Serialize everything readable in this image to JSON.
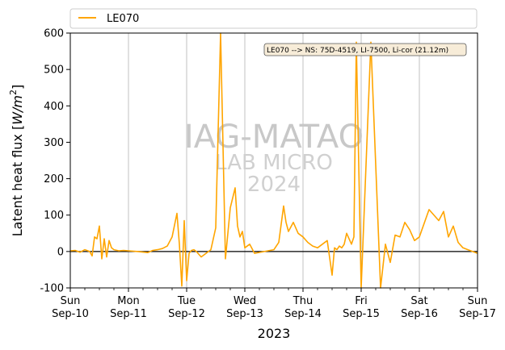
{
  "chart_data": {
    "type": "line",
    "year_label": "2023",
    "ylabel_prefix": "Latent heat flux [",
    "ylabel_unit": "W/m",
    "ylabel_suffix": "]",
    "ylim": [
      -100,
      600
    ],
    "yticks": [
      -100,
      0,
      100,
      200,
      300,
      400,
      500,
      600
    ],
    "xlim": [
      "2023-09-10",
      "2023-09-17"
    ],
    "xticks": [
      {
        "day": "Sun",
        "date": "Sep-10"
      },
      {
        "day": "Mon",
        "date": "Sep-11"
      },
      {
        "day": "Tue",
        "date": "Sep-12"
      },
      {
        "day": "Wed",
        "date": "Sep-13"
      },
      {
        "day": "Thu",
        "date": "Sep-14"
      },
      {
        "day": "Fri",
        "date": "Sep-15"
      },
      {
        "day": "Sat",
        "date": "Sep-16"
      },
      {
        "day": "Sun",
        "date": "Sep-17"
      }
    ],
    "grid": "vertical",
    "zero_line": true,
    "legend_position": "top",
    "annotation": "LE070 --> NS: 75D-4519, LI-7500, Li-cor (21.12m)",
    "watermark": [
      "IAG-MATAO",
      "LAB MICRO",
      "2024"
    ],
    "series": [
      {
        "name": "LE070",
        "color": "#FFA500",
        "x": [
          "2023-09-10 00:00",
          "2023-09-10 02:00",
          "2023-09-10 04:00",
          "2023-09-10 06:00",
          "2023-09-10 08:00",
          "2023-09-10 09:00",
          "2023-09-10 10:00",
          "2023-09-10 11:00",
          "2023-09-10 12:00",
          "2023-09-10 13:00",
          "2023-09-10 14:00",
          "2023-09-10 15:00",
          "2023-09-10 16:00",
          "2023-09-10 17:00",
          "2023-09-10 18:00",
          "2023-09-10 20:00",
          "2023-09-10 22:00",
          "2023-09-11 00:00",
          "2023-09-11 04:00",
          "2023-09-11 08:00",
          "2023-09-11 10:00",
          "2023-09-11 12:00",
          "2023-09-11 14:00",
          "2023-09-11 16:00",
          "2023-09-11 18:00",
          "2023-09-11 20:00",
          "2023-09-11 21:00",
          "2023-09-11 22:00",
          "2023-09-11 23:00",
          "2023-09-12 00:00",
          "2023-09-12 01:00",
          "2023-09-12 02:00",
          "2023-09-12 03:00",
          "2023-09-12 04:00",
          "2023-09-12 06:00",
          "2023-09-12 08:00",
          "2023-09-12 10:00",
          "2023-09-12 12:00",
          "2023-09-12 14:00",
          "2023-09-12 16:00",
          "2023-09-12 18:00",
          "2023-09-12 20:00",
          "2023-09-12 21:00",
          "2023-09-12 22:00",
          "2023-09-12 23:00",
          "2023-09-13 00:00",
          "2023-09-13 02:00",
          "2023-09-13 04:00",
          "2023-09-13 08:00",
          "2023-09-13 12:00",
          "2023-09-13 14:00",
          "2023-09-13 16:00",
          "2023-09-13 17:00",
          "2023-09-13 18:00",
          "2023-09-13 20:00",
          "2023-09-13 22:00",
          "2023-09-14 00:00",
          "2023-09-14 02:00",
          "2023-09-14 04:00",
          "2023-09-14 06:00",
          "2023-09-14 08:00",
          "2023-09-14 10:00",
          "2023-09-14 12:00",
          "2023-09-14 13:00",
          "2023-09-14 14:00",
          "2023-09-14 15:00",
          "2023-09-14 16:00",
          "2023-09-14 17:00",
          "2023-09-14 18:00",
          "2023-09-14 19:00",
          "2023-09-14 20:00",
          "2023-09-14 21:00",
          "2023-09-14 22:00",
          "2023-09-15 00:00",
          "2023-09-15 04:00",
          "2023-09-15 08:00",
          "2023-09-15 10:00",
          "2023-09-15 12:00",
          "2023-09-15 14:00",
          "2023-09-15 16:00",
          "2023-09-15 18:00",
          "2023-09-15 20:00",
          "2023-09-15 22:00",
          "2023-09-16 00:00",
          "2023-09-16 04:00",
          "2023-09-16 08:00",
          "2023-09-16 10:00",
          "2023-09-16 12:00",
          "2023-09-16 14:00",
          "2023-09-16 16:00",
          "2023-09-16 18:00",
          "2023-09-16 20:00",
          "2023-09-16 22:00",
          "2023-09-17 00:00"
        ],
        "y": [
          2,
          3,
          -2,
          5,
          0,
          -12,
          40,
          35,
          70,
          -20,
          35,
          -15,
          30,
          10,
          5,
          2,
          3,
          2,
          0,
          -3,
          3,
          5,
          8,
          15,
          40,
          105,
          20,
          -95,
          85,
          -80,
          -5,
          3,
          5,
          0,
          -15,
          -5,
          5,
          65,
          600,
          -20,
          120,
          175,
          70,
          40,
          55,
          10,
          20,
          -5,
          0,
          5,
          25,
          125,
          80,
          55,
          80,
          50,
          40,
          25,
          15,
          10,
          20,
          30,
          -65,
          10,
          5,
          15,
          10,
          20,
          50,
          35,
          20,
          40,
          575,
          -100,
          575,
          -100,
          20,
          -30,
          45,
          40,
          80,
          60,
          30,
          40,
          115,
          85,
          110,
          40,
          70,
          25,
          10,
          5,
          0,
          -5
        ]
      }
    ]
  }
}
